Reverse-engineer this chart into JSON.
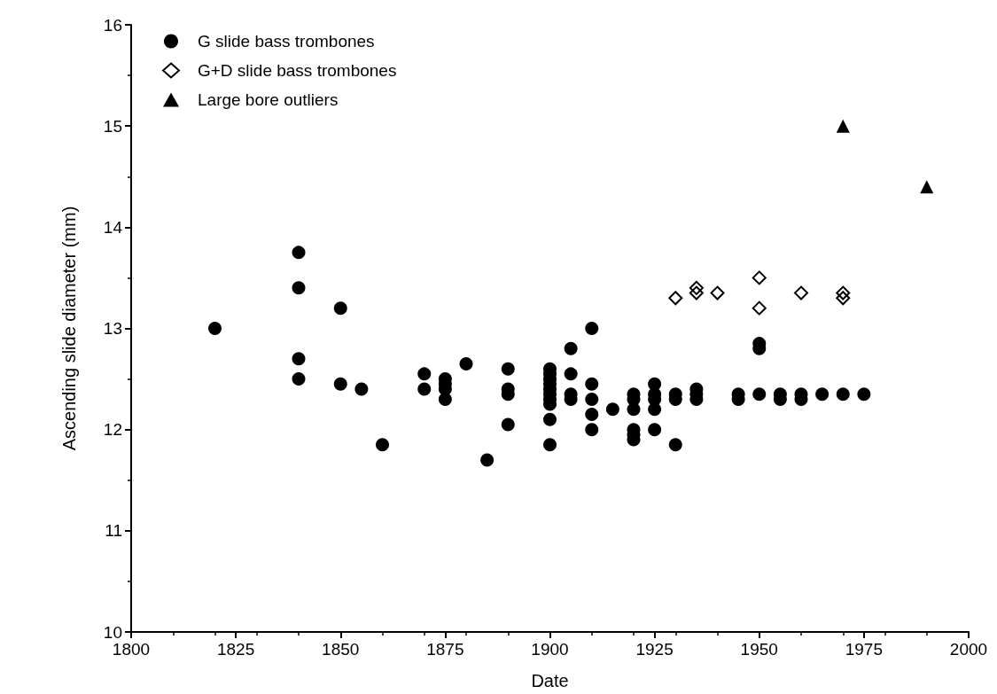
{
  "chart_data": {
    "type": "scatter",
    "xlabel": "Date",
    "ylabel": "Ascending slide diameter (mm)",
    "xlim": [
      1800,
      2000
    ],
    "xticks": [
      1800,
      1825,
      1850,
      1875,
      1900,
      1925,
      1950,
      1975,
      2000
    ],
    "ylim": [
      10,
      16
    ],
    "yticks": [
      10,
      11,
      12,
      13,
      14,
      15,
      16
    ],
    "grid": false,
    "legend": "top left",
    "series": [
      {
        "name": "G slide bass trombones",
        "color": "#000000",
        "marker": "circle",
        "x": [
          1820,
          1840,
          1840,
          1840,
          1840,
          1850,
          1850,
          1855,
          1860,
          1870,
          1870,
          1875,
          1875,
          1875,
          1875,
          1880,
          1885,
          1890,
          1890,
          1890,
          1890,
          1900,
          1900,
          1900,
          1900,
          1900,
          1900,
          1900,
          1900,
          1900,
          1900,
          1905,
          1905,
          1905,
          1905,
          1910,
          1910,
          1910,
          1910,
          1910,
          1915,
          1920,
          1920,
          1920,
          1920,
          1920,
          1920,
          1925,
          1925,
          1925,
          1925,
          1925,
          1930,
          1930,
          1930,
          1935,
          1935,
          1935,
          1945,
          1945,
          1950,
          1950,
          1950,
          1955,
          1955,
          1960,
          1960,
          1965,
          1970,
          1975
        ],
        "values": [
          13.0,
          13.75,
          13.4,
          12.7,
          12.5,
          13.2,
          12.45,
          12.4,
          11.85,
          12.55,
          12.4,
          12.5,
          12.45,
          12.4,
          12.3,
          12.65,
          11.7,
          12.6,
          12.4,
          12.35,
          12.05,
          12.6,
          12.55,
          12.5,
          12.45,
          12.4,
          12.35,
          12.3,
          12.25,
          12.1,
          11.85,
          12.8,
          12.55,
          12.35,
          12.3,
          13.0,
          12.45,
          12.3,
          12.15,
          12.0,
          12.2,
          12.35,
          12.3,
          12.2,
          12.0,
          11.95,
          11.9,
          12.45,
          12.35,
          12.3,
          12.2,
          12.0,
          12.35,
          12.3,
          11.85,
          12.4,
          12.35,
          12.3,
          12.35,
          12.3,
          12.85,
          12.8,
          12.35,
          12.35,
          12.3,
          12.35,
          12.3,
          12.35,
          12.35,
          12.35
        ]
      },
      {
        "name": "G+D slide bass trombones",
        "color": "#000000",
        "marker": "diamond",
        "x": [
          1930,
          1935,
          1935,
          1940,
          1950,
          1950,
          1960,
          1970,
          1970
        ],
        "values": [
          13.3,
          13.4,
          13.35,
          13.35,
          13.5,
          13.2,
          13.35,
          13.35,
          13.3
        ]
      },
      {
        "name": "Large bore outliers",
        "color": "#000000",
        "marker": "triangle",
        "x": [
          1970,
          1990
        ],
        "values": [
          15.0,
          14.4
        ]
      }
    ]
  }
}
